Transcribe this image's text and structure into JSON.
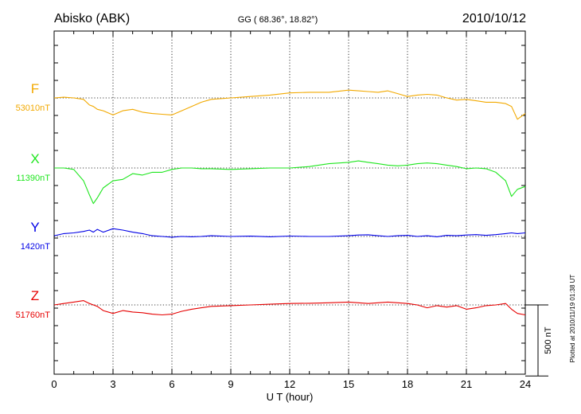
{
  "header": {
    "station": "Abisko (ABK)",
    "coords": "GG ( 68.36°,  18.82°)",
    "date": "2010/10/12"
  },
  "side_note": "Plotted at 2010/11/19 01:38 UT",
  "chart_data": {
    "type": "line",
    "title": "Abisko (ABK)",
    "xlabel": "U T (hour)",
    "ylabel": "",
    "xlim": [
      0,
      24
    ],
    "x_ticks": [
      "0",
      "3",
      "6",
      "9",
      "12",
      "15",
      "18",
      "21",
      "24"
    ],
    "grid": true,
    "scale_bar": {
      "label": "500 nT",
      "value_nT": 500
    },
    "x": [
      0,
      0.5,
      1,
      1.5,
      1.8,
      2,
      2.2,
      2.5,
      3,
      3.5,
      4,
      4.5,
      5,
      5.5,
      6,
      6.5,
      7,
      7.5,
      8,
      9,
      10,
      11,
      12,
      13,
      14,
      15,
      15.5,
      16,
      16.5,
      17,
      17.5,
      18,
      18.5,
      19,
      19.5,
      20,
      20.5,
      21,
      21.5,
      22,
      22.5,
      23,
      23.3,
      23.6,
      24
    ],
    "series": [
      {
        "name": "F",
        "baseline_label": "53010nT",
        "baseline_nT": 53010,
        "color": "#f2a900",
        "values": [
          53010,
          53015,
          53010,
          53000,
          52960,
          52950,
          52930,
          52920,
          52890,
          52920,
          52930,
          52910,
          52900,
          52895,
          52890,
          52920,
          52950,
          52980,
          53000,
          53010,
          53020,
          53030,
          53045,
          53050,
          53050,
          53065,
          53060,
          53055,
          53050,
          53060,
          53040,
          53020,
          53030,
          53035,
          53030,
          53010,
          52995,
          53000,
          52990,
          52980,
          52980,
          52970,
          52950,
          52860,
          52900
        ]
      },
      {
        "name": "X",
        "baseline_label": "11390nT",
        "baseline_nT": 11390,
        "color": "#1ee61e",
        "values": [
          11390,
          11390,
          11380,
          11300,
          11200,
          11140,
          11180,
          11250,
          11300,
          11310,
          11350,
          11340,
          11360,
          11360,
          11380,
          11390,
          11390,
          11385,
          11385,
          11380,
          11385,
          11390,
          11390,
          11400,
          11420,
          11430,
          11440,
          11430,
          11420,
          11410,
          11405,
          11410,
          11420,
          11425,
          11420,
          11410,
          11400,
          11385,
          11390,
          11385,
          11360,
          11300,
          11190,
          11240,
          11260
        ]
      },
      {
        "name": "Y",
        "baseline_label": "1420nT",
        "baseline_nT": 1420,
        "color": "#0000e6",
        "values": [
          1425,
          1440,
          1445,
          1455,
          1465,
          1450,
          1470,
          1450,
          1475,
          1465,
          1450,
          1440,
          1425,
          1420,
          1415,
          1420,
          1418,
          1420,
          1425,
          1420,
          1422,
          1418,
          1423,
          1420,
          1420,
          1425,
          1430,
          1432,
          1425,
          1420,
          1425,
          1428,
          1420,
          1425,
          1418,
          1428,
          1425,
          1430,
          1433,
          1428,
          1433,
          1440,
          1445,
          1440,
          1445
        ]
      },
      {
        "name": "Z",
        "baseline_label": "51760nT",
        "baseline_nT": 51760,
        "color": "#e60000",
        "values": [
          51760,
          51770,
          51780,
          51790,
          51770,
          51760,
          51750,
          51720,
          51700,
          51720,
          51710,
          51705,
          51695,
          51690,
          51695,
          51715,
          51730,
          51740,
          51750,
          51755,
          51760,
          51765,
          51770,
          51772,
          51775,
          51780,
          51775,
          51770,
          51775,
          51780,
          51775,
          51770,
          51760,
          51740,
          51755,
          51745,
          51755,
          51730,
          51740,
          51755,
          51760,
          51770,
          51730,
          51700,
          51690
        ]
      }
    ]
  }
}
